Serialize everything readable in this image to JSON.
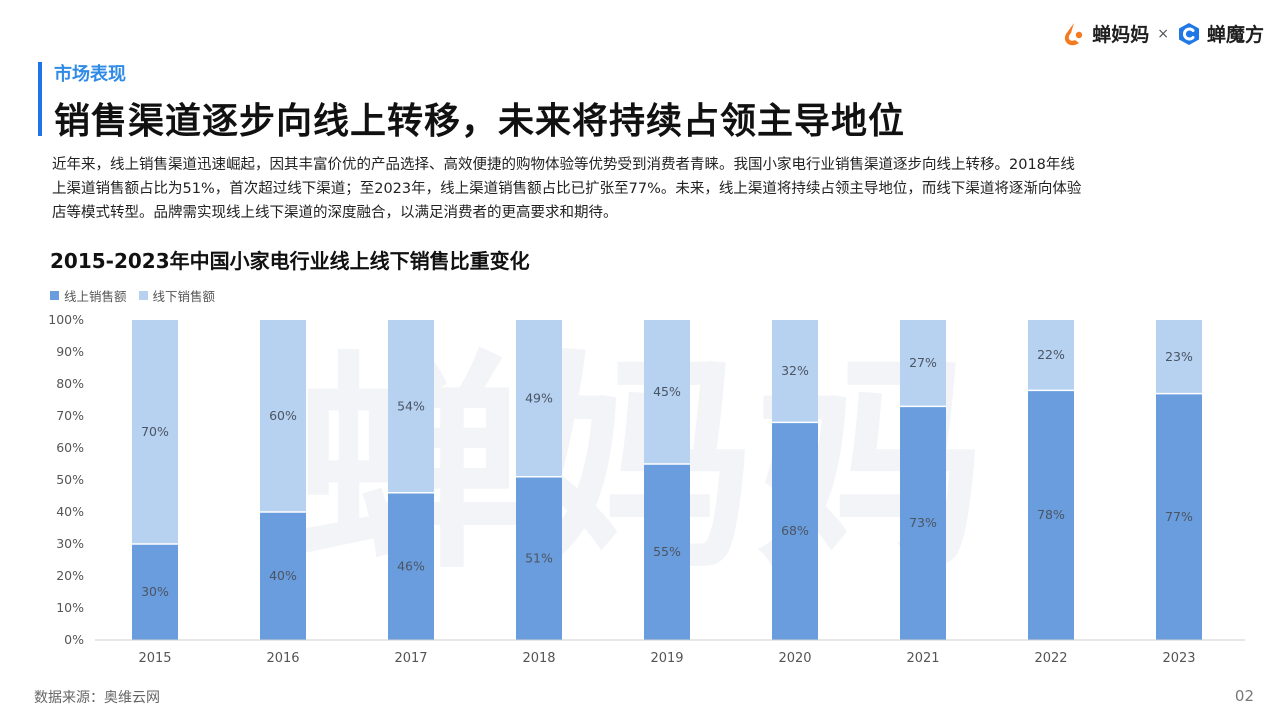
{
  "brand": {
    "logo_a_name": "蝉妈妈",
    "separator": "×",
    "logo_b_name": "蝉魔方",
    "colors": {
      "orange": "#f47a20",
      "blue": "#1f78e6"
    }
  },
  "header": {
    "section": "市场表现",
    "title": "销售渠道逐步向线上转移，未来将持续占领主导地位"
  },
  "intro": {
    "lines": [
      "近年来，线上销售渠道迅速崛起，因其丰富价优的产品选择、高效便捷的购物体验等优势受到消费者青睐。我国小家电行业销售渠道逐步向线上转移。2018年线",
      "上渠道销售额占比为51%，首次超过线下渠道；至2023年，线上渠道销售额占比已扩张至77%。未来，线上渠道将持续占领主导地位，而线下渠道将逐渐向体验",
      "店等模式转型。品牌需实现线上线下渠道的深度融合，以满足消费者的更高要求和期待。"
    ]
  },
  "chart_data": {
    "type": "bar",
    "stacked": true,
    "title": "2015-2023年中国小家电行业线上线下销售比重变化",
    "categories": [
      "2015",
      "2016",
      "2017",
      "2018",
      "2019",
      "2020",
      "2021",
      "2022",
      "2023"
    ],
    "series": [
      {
        "name": "线上销售额",
        "color": "#6a9ddd",
        "values": [
          30,
          40,
          46,
          51,
          55,
          68,
          73,
          78,
          77
        ]
      },
      {
        "name": "线下销售额",
        "color": "#b7d1f1",
        "values": [
          70,
          60,
          54,
          49,
          45,
          32,
          27,
          22,
          23
        ]
      }
    ],
    "ylim": [
      0,
      100
    ],
    "yticks": [
      "0%",
      "10%",
      "20%",
      "30%",
      "40%",
      "50%",
      "60%",
      "70%",
      "80%",
      "90%",
      "100%"
    ],
    "legend": "top-left",
    "watermark": "蝉妈妈"
  },
  "footer": {
    "source": "数据来源：奥维云网",
    "page": "02"
  }
}
